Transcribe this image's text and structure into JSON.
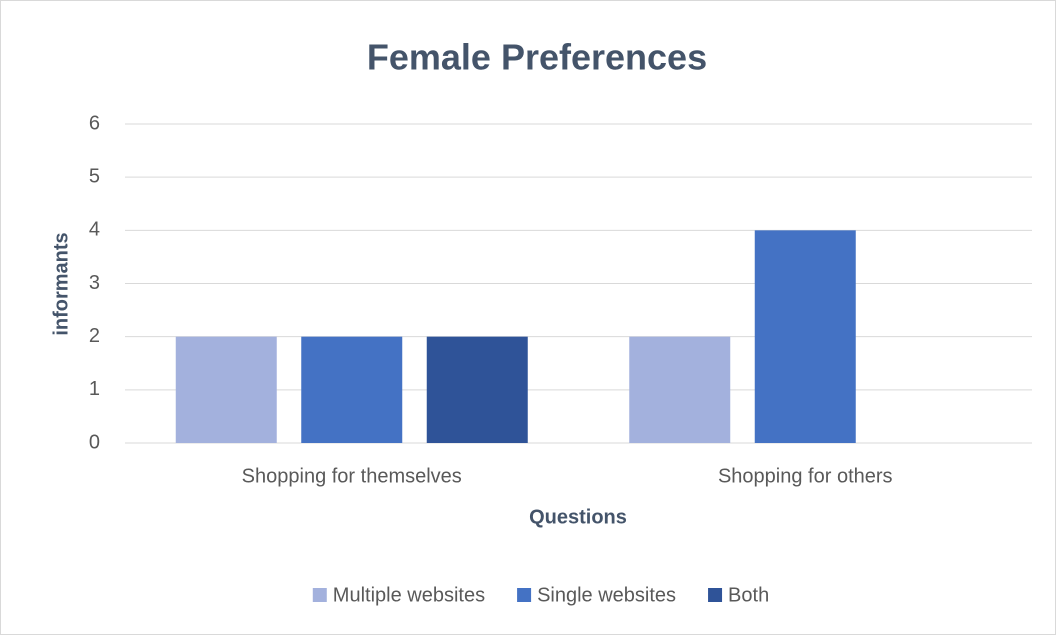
{
  "chart_data": {
    "type": "bar",
    "title": "Female Preferences",
    "x_label": "Questions",
    "y_label": "informants",
    "categories": [
      "Shopping for themselves",
      "Shopping for others"
    ],
    "series": [
      {
        "name": "Multiple websites",
        "color": "#a3b1dd",
        "values": [
          2,
          2
        ]
      },
      {
        "name": "Single websites",
        "color": "#4472c4",
        "values": [
          2,
          4
        ]
      },
      {
        "name": "Both",
        "color": "#2f5398",
        "values": [
          2,
          0
        ]
      }
    ],
    "ylim": [
      0,
      6
    ],
    "yticks": [
      0,
      1,
      2,
      3,
      4,
      5,
      6
    ],
    "grid": true,
    "legend": "bottom"
  }
}
